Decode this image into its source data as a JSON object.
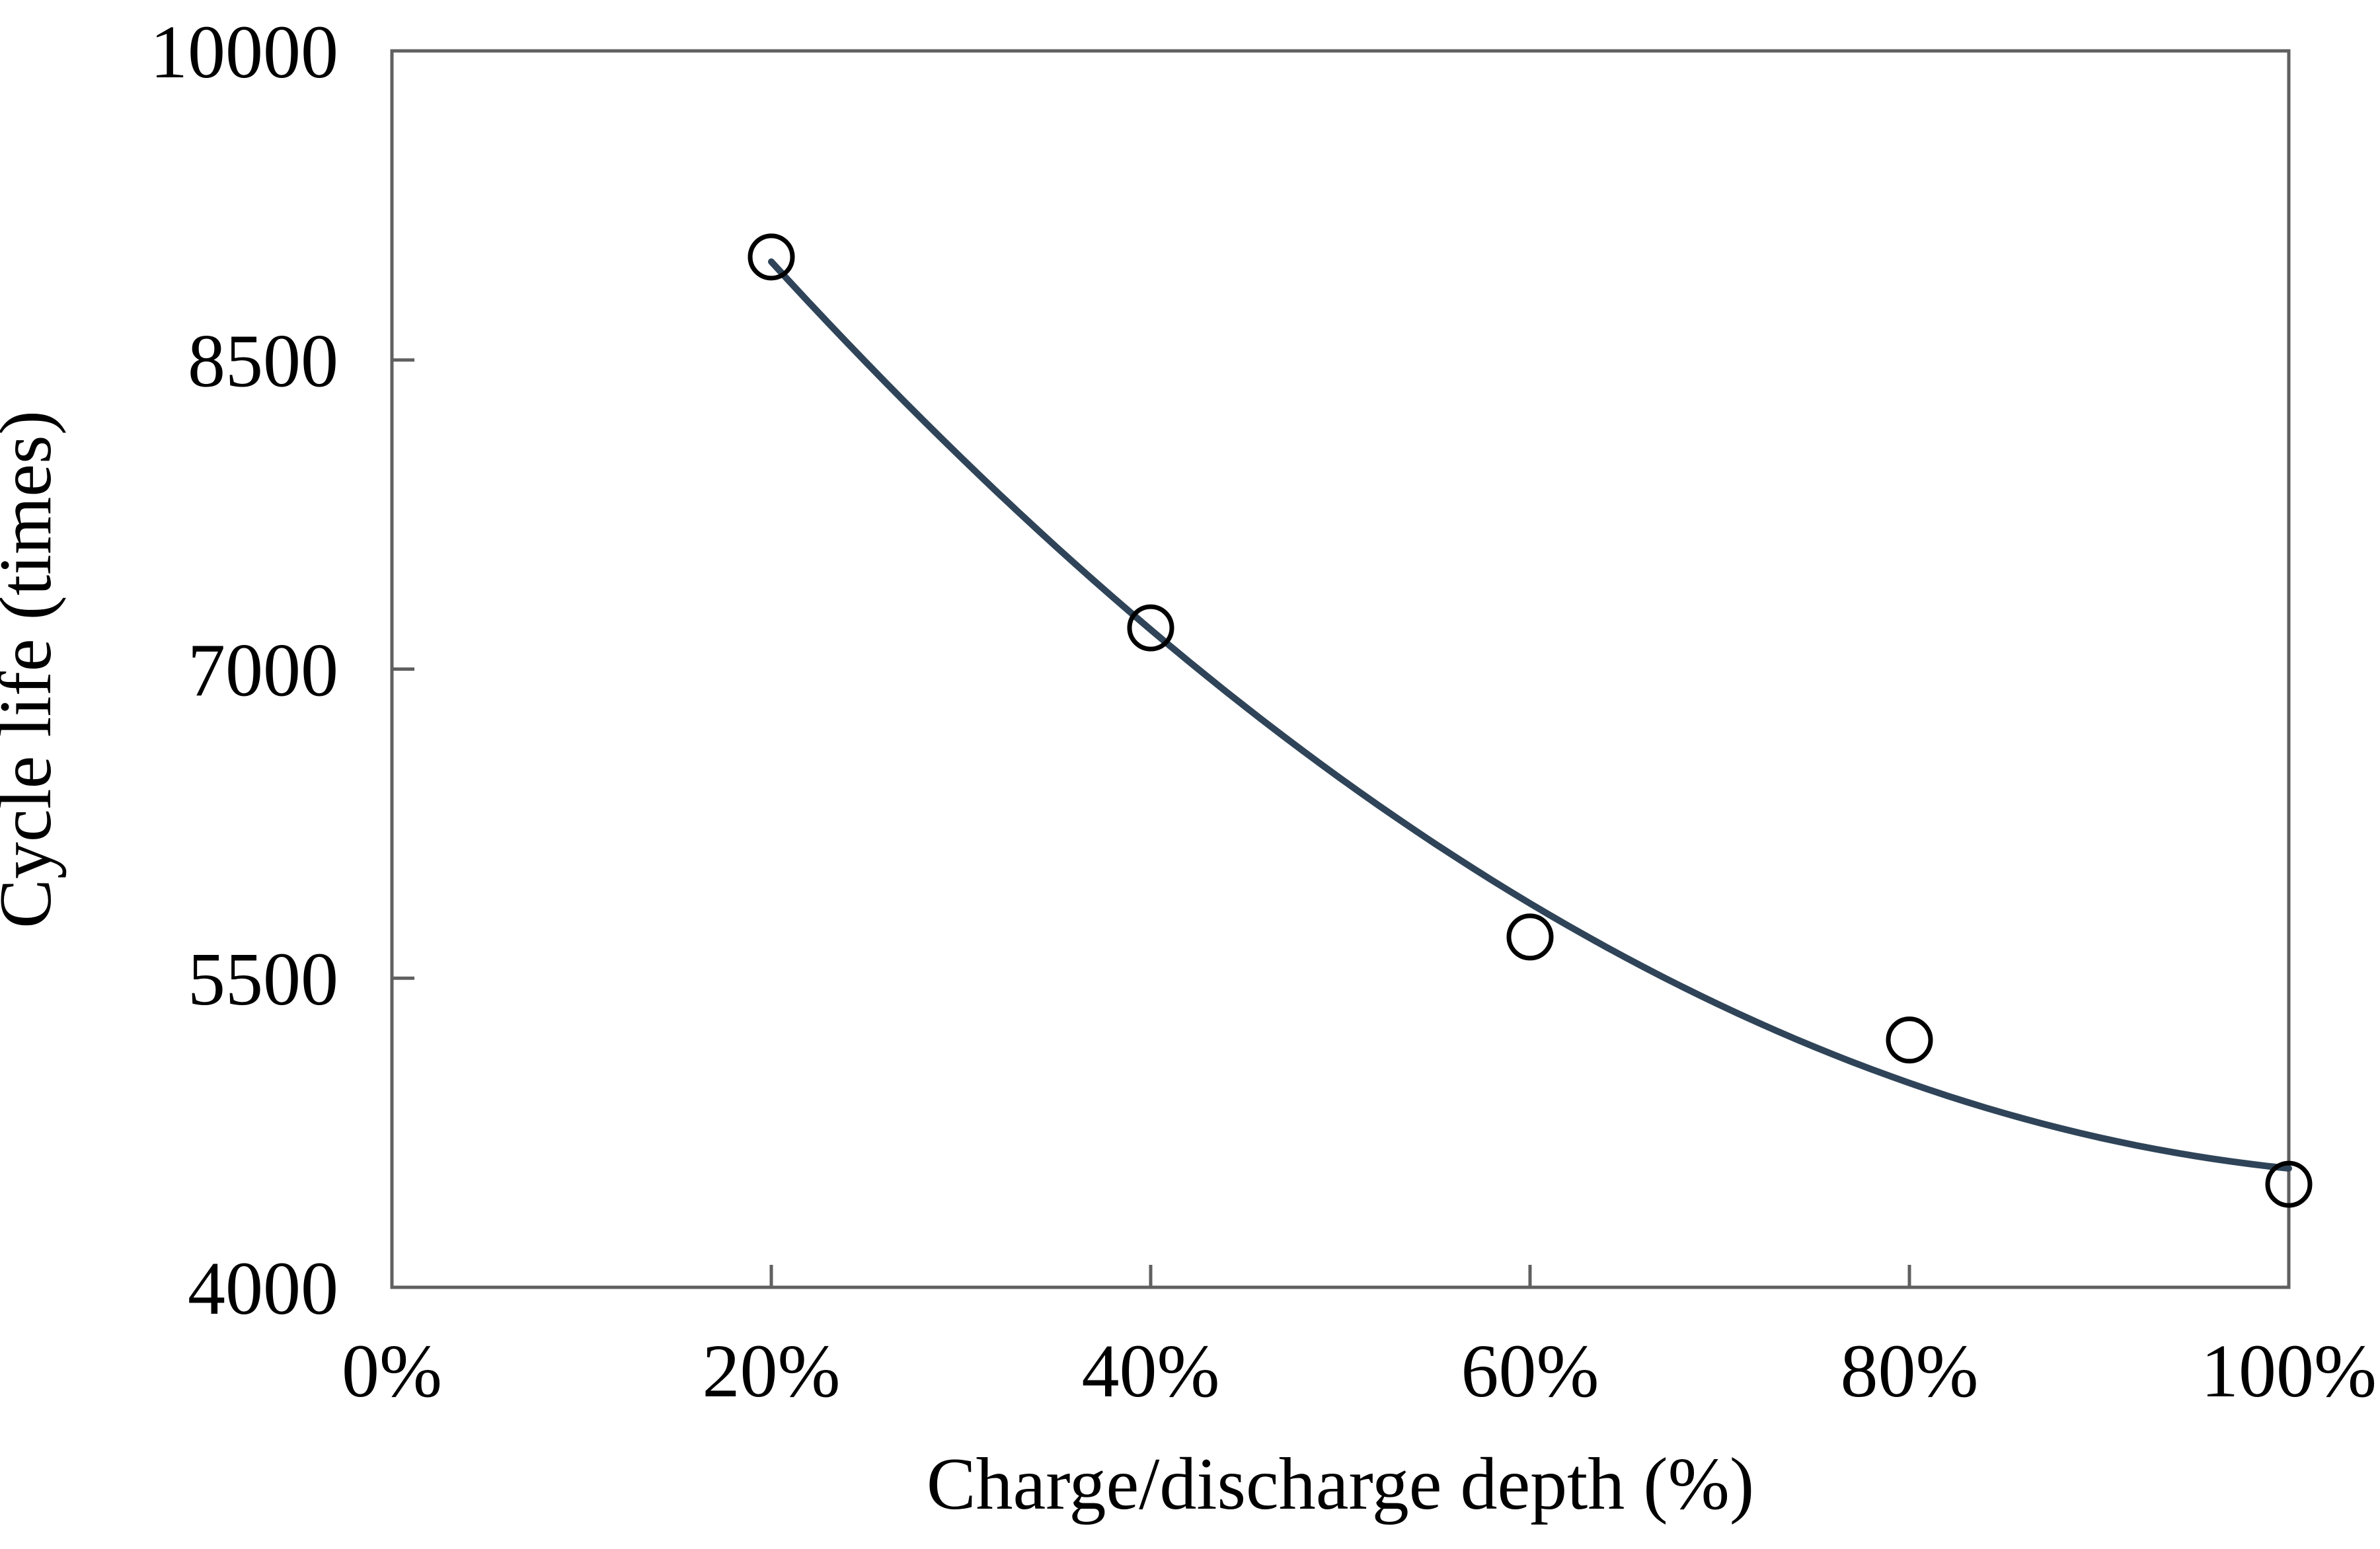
{
  "chart_data": {
    "type": "scatter",
    "title": "",
    "xlabel": "Charge/discharge depth (%)",
    "ylabel": "Cycle life (times)",
    "series": [
      {
        "name": "cycle-life-vs-depth",
        "x_percent": [
          20,
          40,
          60,
          80,
          100
        ],
        "values": [
          9000,
          7200,
          5700,
          5200,
          4500
        ]
      }
    ],
    "trendline": {
      "kind": "quadratic_least_squares",
      "x_range_percent": [
        20,
        100
      ]
    },
    "x_ticks": {
      "labels": [
        "0%",
        "20%",
        "40%",
        "60%",
        "80%",
        "100%"
      ],
      "values": [
        0,
        20,
        40,
        60,
        80,
        100
      ]
    },
    "y_ticks": {
      "labels": [
        "10000",
        "8500",
        "7000",
        "5500",
        "4000"
      ],
      "values": [
        10000,
        8500,
        7000,
        5500,
        4000
      ]
    },
    "xlim_percent": [
      0,
      100
    ],
    "ylim": [
      4000,
      10000
    ],
    "grid": false,
    "legend": false,
    "marker": {
      "shape": "circle",
      "fill": "none",
      "stroke": "#000000"
    },
    "colors": {
      "trendline": "#2f4458",
      "axis": "#606060",
      "text": "#000000",
      "background": "#ffffff"
    }
  }
}
